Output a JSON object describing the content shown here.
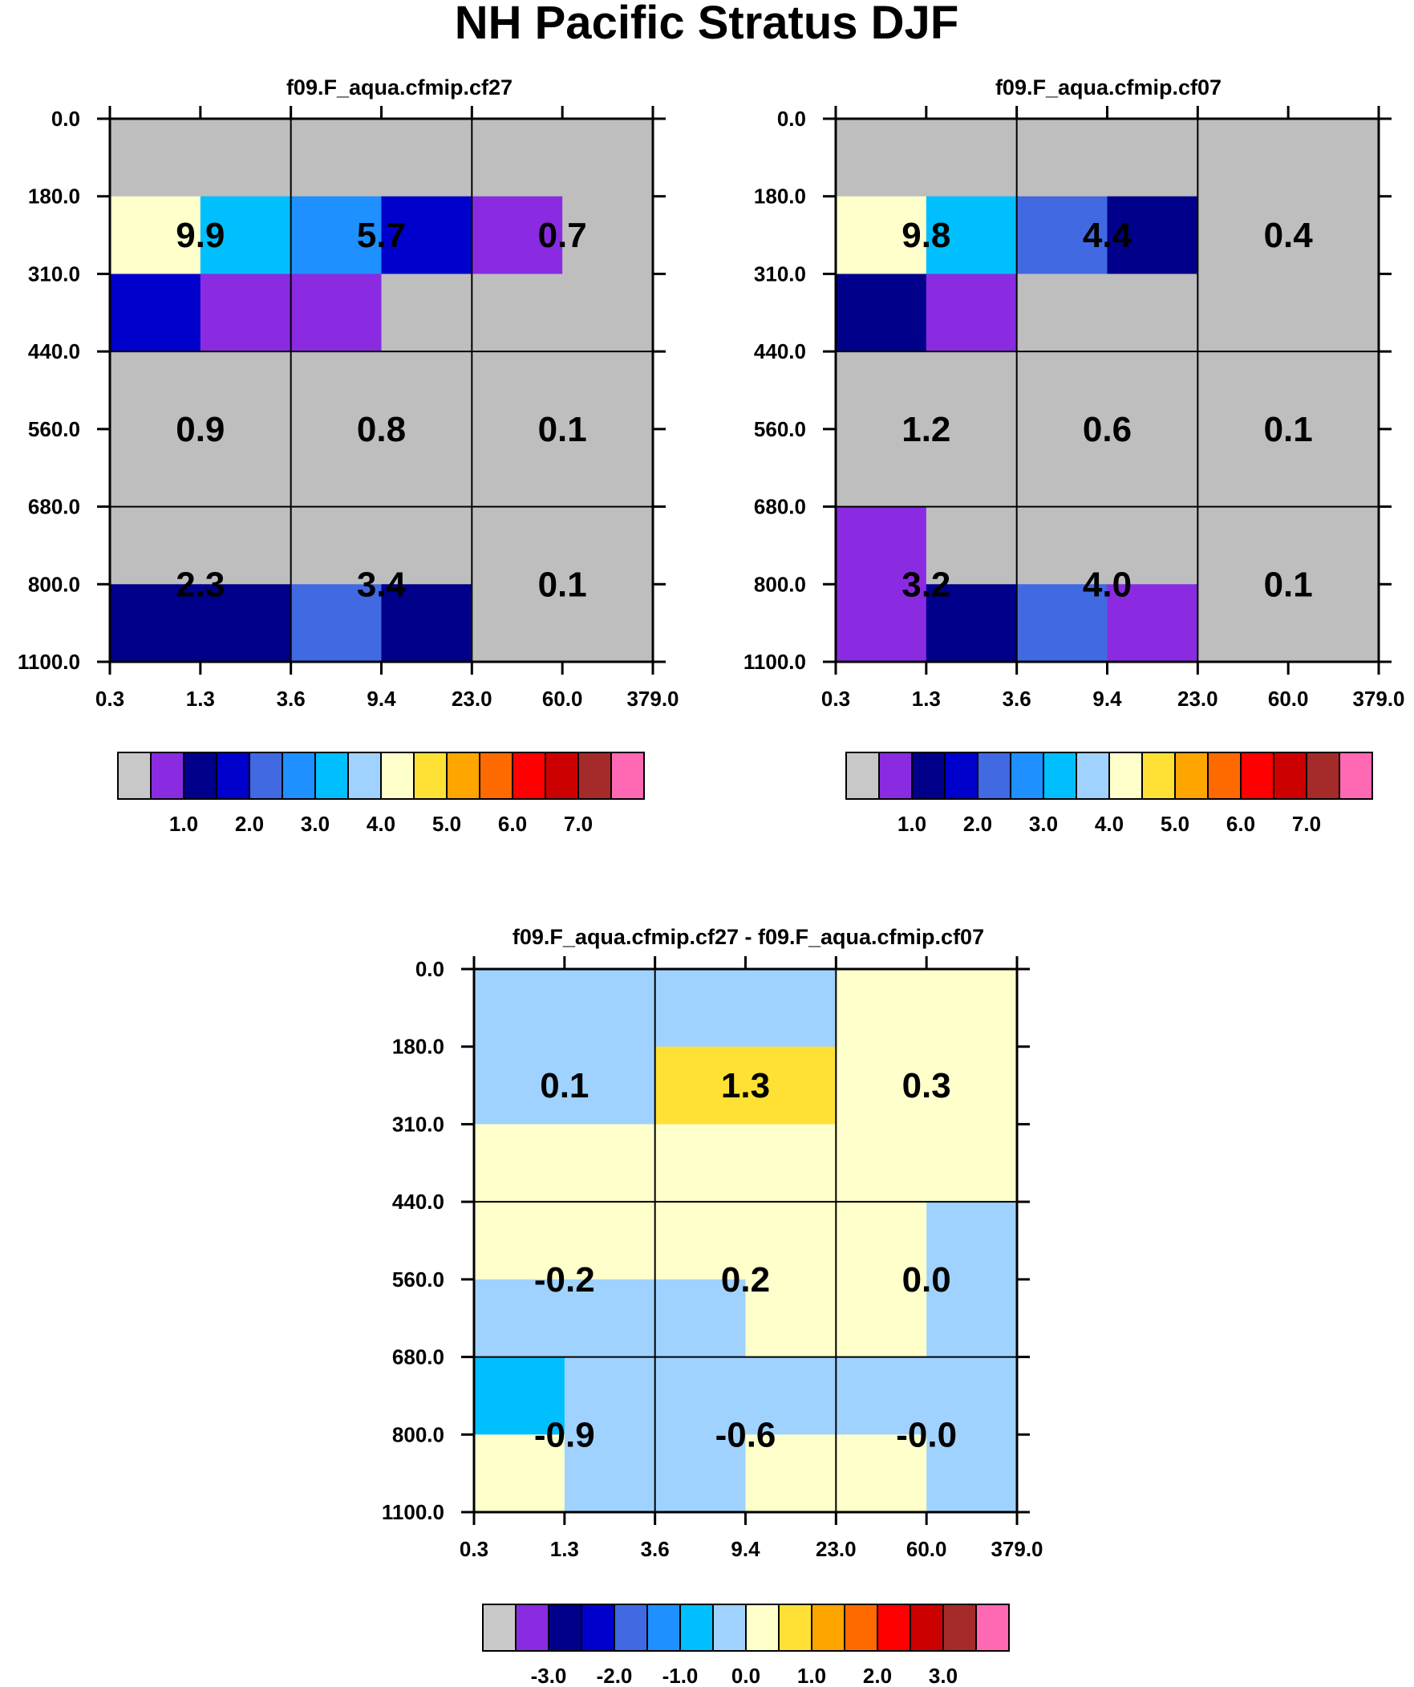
{
  "title": "NH Pacific Stratus DJF",
  "chart_data": [
    {
      "type": "heatmap",
      "title": "f09.F_aqua.cfmip.cf27",
      "x_ticks": [
        "0.3",
        "1.3",
        "3.6",
        "9.4",
        "23.0",
        "60.0",
        "379.0"
      ],
      "y_ticks": [
        "0.0",
        "180.0",
        "310.0",
        "440.0",
        "560.0",
        "680.0",
        "800.0",
        "1100.0"
      ],
      "cell_colors": [
        [
          "#bebebe",
          "#bebebe",
          "#bebebe",
          "#bebebe",
          "#bebebe",
          "#bebebe"
        ],
        [
          "#ffffcc",
          "#00bfff",
          "#1e90ff",
          "#0000cd",
          "#8a2be2",
          "#bebebe"
        ],
        [
          "#0000cd",
          "#8a2be2",
          "#8a2be2",
          "#bebebe",
          "#bebebe",
          "#bebebe"
        ],
        [
          "#bebebe",
          "#bebebe",
          "#bebebe",
          "#bebebe",
          "#bebebe",
          "#bebebe"
        ],
        [
          "#bebebe",
          "#bebebe",
          "#bebebe",
          "#bebebe",
          "#bebebe",
          "#bebebe"
        ],
        [
          "#bebebe",
          "#bebebe",
          "#bebebe",
          "#bebebe",
          "#bebebe",
          "#bebebe"
        ],
        [
          "#00008b",
          "#00008b",
          "#4169e1",
          "#00008b",
          "#bebebe",
          "#bebebe"
        ]
      ],
      "box_values": [
        [
          "9.9",
          "5.7",
          "0.7"
        ],
        [
          "0.9",
          "0.8",
          "0.1"
        ],
        [
          "2.3",
          "3.4",
          "0.1"
        ]
      ],
      "colorbar": {
        "colors": [
          "#c8c8c8",
          "#8a2be2",
          "#00008b",
          "#0000cd",
          "#4169e1",
          "#1e90ff",
          "#00bfff",
          "#a0d2ff",
          "#ffffcc",
          "#ffe135",
          "#ffa500",
          "#ff6a00",
          "#ff0000",
          "#cd0000",
          "#a52a2a",
          "#ff69b4"
        ],
        "labels": [
          "1.0",
          "2.0",
          "3.0",
          "4.0",
          "5.0",
          "6.0",
          "7.0"
        ]
      }
    },
    {
      "type": "heatmap",
      "title": "f09.F_aqua.cfmip.cf07",
      "x_ticks": [
        "0.3",
        "1.3",
        "3.6",
        "9.4",
        "23.0",
        "60.0",
        "379.0"
      ],
      "y_ticks": [
        "0.0",
        "180.0",
        "310.0",
        "440.0",
        "560.0",
        "680.0",
        "800.0",
        "1100.0"
      ],
      "cell_colors": [
        [
          "#bebebe",
          "#bebebe",
          "#bebebe",
          "#bebebe",
          "#bebebe",
          "#bebebe"
        ],
        [
          "#ffffcc",
          "#00bfff",
          "#4169e1",
          "#00008b",
          "#bebebe",
          "#bebebe"
        ],
        [
          "#00008b",
          "#8a2be2",
          "#bebebe",
          "#bebebe",
          "#bebebe",
          "#bebebe"
        ],
        [
          "#bebebe",
          "#bebebe",
          "#bebebe",
          "#bebebe",
          "#bebebe",
          "#bebebe"
        ],
        [
          "#bebebe",
          "#bebebe",
          "#bebebe",
          "#bebebe",
          "#bebebe",
          "#bebebe"
        ],
        [
          "#8a2be2",
          "#bebebe",
          "#bebebe",
          "#bebebe",
          "#bebebe",
          "#bebebe"
        ],
        [
          "#8a2be2",
          "#00008b",
          "#4169e1",
          "#8a2be2",
          "#bebebe",
          "#bebebe"
        ]
      ],
      "box_values": [
        [
          "9.8",
          "4.4",
          "0.4"
        ],
        [
          "1.2",
          "0.6",
          "0.1"
        ],
        [
          "3.2",
          "4.0",
          "0.1"
        ]
      ],
      "colorbar": {
        "colors": [
          "#c8c8c8",
          "#8a2be2",
          "#00008b",
          "#0000cd",
          "#4169e1",
          "#1e90ff",
          "#00bfff",
          "#a0d2ff",
          "#ffffcc",
          "#ffe135",
          "#ffa500",
          "#ff6a00",
          "#ff0000",
          "#cd0000",
          "#a52a2a",
          "#ff69b4"
        ],
        "labels": [
          "1.0",
          "2.0",
          "3.0",
          "4.0",
          "5.0",
          "6.0",
          "7.0"
        ]
      }
    },
    {
      "type": "heatmap",
      "title": "f09.F_aqua.cfmip.cf27 - f09.F_aqua.cfmip.cf07",
      "x_ticks": [
        "0.3",
        "1.3",
        "3.6",
        "9.4",
        "23.0",
        "60.0",
        "379.0"
      ],
      "y_ticks": [
        "0.0",
        "180.0",
        "310.0",
        "440.0",
        "560.0",
        "680.0",
        "800.0",
        "1100.0"
      ],
      "cell_colors": [
        [
          "#a0d2ff",
          "#a0d2ff",
          "#a0d2ff",
          "#a0d2ff",
          "#ffffcc",
          "#ffffcc"
        ],
        [
          "#a0d2ff",
          "#a0d2ff",
          "#ffe135",
          "#ffe135",
          "#ffffcc",
          "#ffffcc"
        ],
        [
          "#ffffcc",
          "#ffffcc",
          "#ffffcc",
          "#ffffcc",
          "#ffffcc",
          "#ffffcc"
        ],
        [
          "#ffffcc",
          "#ffffcc",
          "#ffffcc",
          "#ffffcc",
          "#ffffcc",
          "#a0d2ff"
        ],
        [
          "#a0d2ff",
          "#a0d2ff",
          "#a0d2ff",
          "#ffffcc",
          "#ffffcc",
          "#a0d2ff"
        ],
        [
          "#00bfff",
          "#a0d2ff",
          "#a0d2ff",
          "#a0d2ff",
          "#a0d2ff",
          "#a0d2ff"
        ],
        [
          "#ffffcc",
          "#a0d2ff",
          "#a0d2ff",
          "#ffffcc",
          "#ffffcc",
          "#a0d2ff"
        ]
      ],
      "box_values": [
        [
          "0.1",
          "1.3",
          "0.3"
        ],
        [
          "-0.2",
          "0.2",
          "0.0"
        ],
        [
          "-0.9",
          "-0.6",
          "-0.0"
        ]
      ],
      "colorbar": {
        "colors": [
          "#c8c8c8",
          "#8a2be2",
          "#00008b",
          "#0000cd",
          "#4169e1",
          "#1e90ff",
          "#00bfff",
          "#a0d2ff",
          "#ffffcc",
          "#ffe135",
          "#ffa500",
          "#ff6a00",
          "#ff0000",
          "#cd0000",
          "#a52a2a",
          "#ff69b4"
        ],
        "labels": [
          "-3.0",
          "-2.0",
          "-1.0",
          "0.0",
          "1.0",
          "2.0",
          "3.0"
        ]
      }
    }
  ]
}
